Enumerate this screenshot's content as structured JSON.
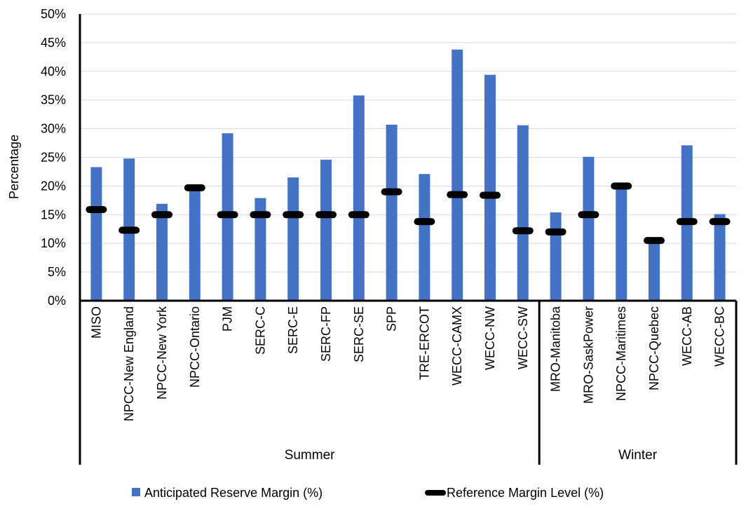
{
  "chart_data": {
    "type": "bar",
    "title": "",
    "xlabel": "",
    "ylabel": "Percentage",
    "ylim": [
      0,
      50
    ],
    "y_ticks": [
      "0%",
      "5%",
      "10%",
      "15%",
      "20%",
      "25%",
      "30%",
      "35%",
      "40%",
      "45%",
      "50%"
    ],
    "grid": "horizontal",
    "legend_position": "bottom",
    "categories": [
      "MISO",
      "NPCC-New England",
      "NPCC-New York",
      "NPCC-Ontario",
      "PJM",
      "SERC-C",
      "SERC-E",
      "SERC-FP",
      "SERC-SE",
      "SPP",
      "TRE-ERCOT",
      "WECC-CAMX",
      "WECC-NW",
      "WECC-SW",
      "MRO-Manitoba",
      "MRO-SaskPower",
      "NPCC-Maritimes",
      "NPCC-Quebec",
      "WECC-AB",
      "WECC-BC"
    ],
    "groups": [
      {
        "label": "Summer",
        "count": 14
      },
      {
        "label": "Winter",
        "count": 6
      }
    ],
    "series": [
      {
        "name": "Anticipated Reserve Margin (%)",
        "mark": "bar",
        "color": "#4472C4",
        "values": [
          23.3,
          24.8,
          16.9,
          19.6,
          29.2,
          17.9,
          21.5,
          24.6,
          35.8,
          30.7,
          22.1,
          43.8,
          39.4,
          30.6,
          15.4,
          25.1,
          20.0,
          10.8,
          27.1,
          15.1
        ]
      },
      {
        "name": "Reference Margin Level (%)",
        "mark": "dash",
        "color": "#000000",
        "values": [
          15.9,
          12.3,
          15.0,
          19.7,
          15.0,
          15.0,
          15.0,
          15.0,
          15.0,
          19.0,
          13.8,
          18.5,
          18.4,
          12.2,
          12.0,
          15.0,
          20.0,
          10.5,
          13.8,
          13.8
        ]
      }
    ]
  }
}
